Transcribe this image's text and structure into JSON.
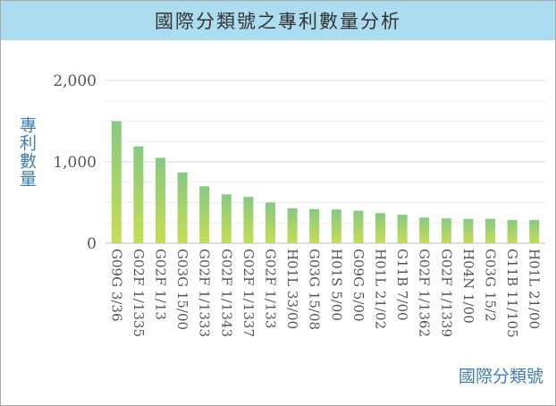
{
  "title": "國際分類號之專利數量分析",
  "chart_data": {
    "type": "bar",
    "title": "國際分類號之專利數量分析",
    "xlabel": "國際分類號",
    "ylabel": "專利數量",
    "ylim": [
      0,
      2000
    ],
    "yticks": [
      0,
      1000,
      2000
    ],
    "ytick_labels": [
      "0",
      "1,000",
      "2,000"
    ],
    "grid": true,
    "categories": [
      "G09G 3/36",
      "G02F 1/1335",
      "G02F 1/13",
      "G03G 15/00",
      "G02F 1/1333",
      "G02F 1/1343",
      "G02F 1/1337",
      "G02F 1/133",
      "H01L 33/00",
      "G03G 15/08",
      "H01S 5/00",
      "G09G 5/00",
      "H01L 21/02",
      "G11B 7/00",
      "G02F 1/1362",
      "G02F 1/1339",
      "H04N 1/00",
      "G03G 15/2",
      "G11B 11/105",
      "H01L 21/00"
    ],
    "values": [
      1500,
      1190,
      1050,
      870,
      700,
      600,
      570,
      500,
      430,
      420,
      415,
      400,
      370,
      350,
      315,
      305,
      300,
      300,
      285,
      285
    ]
  },
  "colors": {
    "title_bar": "#acdcef",
    "bar_top": "#86c982",
    "bar_bottom": "#c6de52",
    "axis_label": "#3f7fa9",
    "gridline": "#d9d9d9"
  }
}
